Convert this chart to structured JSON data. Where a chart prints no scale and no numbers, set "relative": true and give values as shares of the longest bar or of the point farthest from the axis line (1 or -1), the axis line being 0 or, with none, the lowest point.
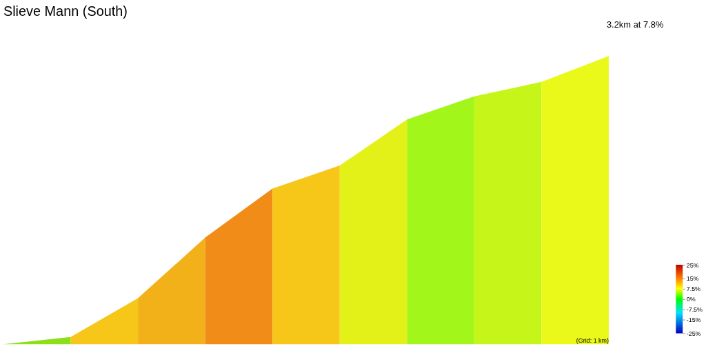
{
  "chart_data": {
    "type": "area",
    "title": "Slieve Mann (South)",
    "subtitle": "3.2km at 7.8%",
    "relative": true,
    "categories": [
      null,
      null,
      null,
      null,
      null,
      null,
      null,
      null,
      null,
      null
    ],
    "series": [
      {
        "color": "#7fdc00",
        "values": [
          0,
          0.025,
          null,
          null,
          null,
          null,
          null,
          null,
          null,
          null
        ]
      },
      {
        "color": "#f5c000",
        "values": [
          null,
          0.025,
          0.16,
          null,
          null,
          null,
          null,
          null,
          null,
          null
        ]
      },
      {
        "color": "#f2a900",
        "values": [
          null,
          null,
          0.16,
          0.37,
          null,
          null,
          null,
          null,
          null,
          null
        ]
      },
      {
        "color": "#f08000",
        "values": [
          null,
          null,
          null,
          0.37,
          0.54,
          null,
          null,
          null,
          null,
          null
        ]
      },
      {
        "color": "#f5c000",
        "values": [
          null,
          null,
          null,
          null,
          0.54,
          0.62,
          null,
          null,
          null,
          null
        ]
      },
      {
        "color": "#e0f000",
        "values": [
          null,
          null,
          null,
          null,
          null,
          0.62,
          0.78,
          null,
          null,
          null
        ]
      },
      {
        "color": "#99f500",
        "values": [
          null,
          null,
          null,
          null,
          null,
          null,
          0.78,
          0.86,
          null,
          null
        ]
      },
      {
        "color": "#c0f500",
        "values": [
          null,
          null,
          null,
          null,
          null,
          null,
          null,
          0.86,
          0.91,
          null
        ]
      },
      {
        "color": "#e8f800",
        "values": [
          null,
          null,
          null,
          null,
          null,
          null,
          null,
          null,
          0.91,
          1
        ]
      }
    ],
    "clim": [
      -25,
      25
    ],
    "cticks": [
      {
        "value": 25,
        "label": "25%"
      },
      {
        "value": 15,
        "label": "15%"
      },
      {
        "value": 7.5,
        "label": "7.5%"
      },
      {
        "value": 0,
        "label": "0%"
      },
      {
        "value": -7.5,
        "label": "-7.5%"
      },
      {
        "value": -15,
        "label": "-15%"
      },
      {
        "value": -25,
        "label": "-25%"
      }
    ],
    "annotations": [
      "(Grid: 1 km)"
    ]
  }
}
